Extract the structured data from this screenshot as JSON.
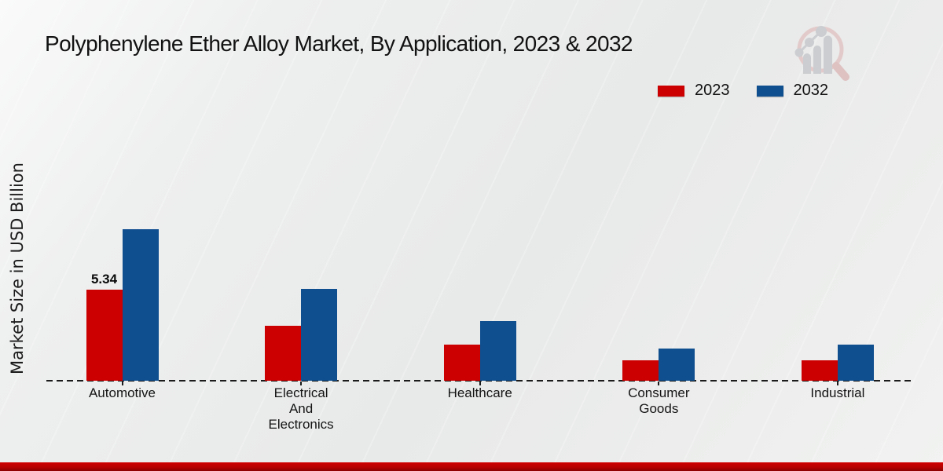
{
  "title": "Polyphenylene Ether Alloy Market, By Application, 2023 & 2032",
  "y_axis_label": "Market Size in USD Billion",
  "legend": [
    {
      "label": "2023",
      "color": "#cc0000"
    },
    {
      "label": "2032",
      "color": "#104f8f"
    }
  ],
  "colors": {
    "series_2023": "#cc0000",
    "series_2032": "#104f8f",
    "baseline": "#1b1b1b",
    "footer_bar": "#b80000",
    "background": "#eaebeb",
    "watermark_ring": "#e2c5c5",
    "watermark_bars": "#c6c8cc"
  },
  "watermark": "magnifier-bar-chart-logo",
  "chart_data": {
    "type": "bar",
    "title": "Polyphenylene Ether Alloy Market, By Application, 2023 & 2032",
    "xlabel": "",
    "ylabel": "Market Size in USD Billion",
    "categories": [
      "Automotive",
      "Electrical And Electronics",
      "Healthcare",
      "Consumer Goods",
      "Industrial"
    ],
    "categories_display": [
      [
        "Automotive"
      ],
      [
        "Electrical",
        "And",
        "Electronics"
      ],
      [
        "Healthcare"
      ],
      [
        "Consumer",
        "Goods"
      ],
      [
        "Industrial"
      ]
    ],
    "series": [
      {
        "name": "2023",
        "color": "#cc0000",
        "values": [
          5.34,
          3.2,
          2.1,
          1.2,
          1.2
        ],
        "data_labels": [
          "5.34",
          "",
          "",
          "",
          ""
        ]
      },
      {
        "name": "2032",
        "color": "#104f8f",
        "values": [
          8.9,
          5.4,
          3.5,
          1.9,
          2.1
        ],
        "data_labels": [
          "",
          "",
          "",
          "",
          ""
        ]
      }
    ],
    "ylim": [
      0,
      9.2
    ],
    "grid": false,
    "y_axis_ticks_visible": false,
    "baseline_style": "dashed",
    "legend_position": "top-right",
    "units": "USD Billion"
  }
}
